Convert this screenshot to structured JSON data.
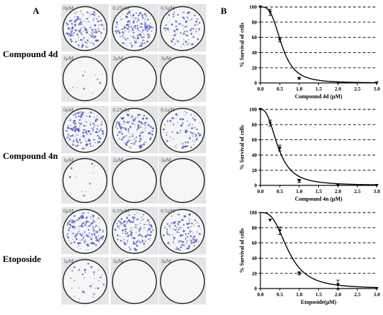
{
  "panels": {
    "a": "A",
    "b": "B"
  },
  "compounds": [
    {
      "name": "Compound 4d",
      "concentrations": [
        "0μM",
        "0.25μM",
        "0.5μM",
        "1μM",
        "2μM",
        "3μM"
      ],
      "colony_density": [
        1.0,
        1.0,
        0.55,
        0.06,
        0.0,
        0.0
      ]
    },
    {
      "name": "Compound 4n",
      "concentrations": [
        "0μM",
        "0.25μM",
        "0.5μM",
        "1μM",
        "2μM",
        "3μM"
      ],
      "colony_density": [
        1.0,
        0.85,
        0.5,
        0.06,
        0.0,
        0.0
      ]
    },
    {
      "name": "Etoposide",
      "concentrations": [
        "0μM",
        "0.25μM",
        "0.5μM",
        "1μM",
        "2μM",
        "3μM"
      ],
      "colony_density": [
        1.0,
        0.9,
        0.75,
        0.2,
        0.0,
        0.0
      ]
    }
  ],
  "colors": {
    "colony": "#4a55c0",
    "dish_border": "#222222",
    "curve": "#000000",
    "gridline": "#000000"
  },
  "chart_data": [
    {
      "type": "line",
      "xlabel": "Compound 4d (μM)",
      "ylabel": "% Survival of cells",
      "xlim": [
        0,
        3.0
      ],
      "ylim": [
        0,
        100
      ],
      "xticks": [
        "0.0",
        "0.5",
        "1.0",
        "1.5",
        "2.0",
        "2.5",
        "3.0"
      ],
      "yticks": [
        "0",
        "20",
        "40",
        "60",
        "80",
        "100"
      ],
      "grid": "horizontal dashed",
      "points": [
        {
          "x": 0,
          "y": 100
        },
        {
          "x": 0.25,
          "y": 93
        },
        {
          "x": 0.5,
          "y": 57
        },
        {
          "x": 1.0,
          "y": 6
        },
        {
          "x": 2.0,
          "y": 0
        },
        {
          "x": 3.0,
          "y": 0
        }
      ],
      "errors": [
        0,
        4,
        3,
        1,
        0,
        0
      ],
      "curve": {
        "ic50": 0.55,
        "hill": 3.3
      }
    },
    {
      "type": "line",
      "xlabel": "Compound 4n (μM)",
      "ylabel": "% Survival of cells",
      "xlim": [
        0,
        3.0
      ],
      "ylim": [
        0,
        100
      ],
      "xticks": [
        "0.0",
        "0.5",
        "1.0",
        "1.5",
        "2.0",
        "2.5",
        "3.0"
      ],
      "yticks": [
        "0",
        "20",
        "40",
        "60",
        "80",
        "100"
      ],
      "grid": "horizontal dashed",
      "points": [
        {
          "x": 0,
          "y": 100
        },
        {
          "x": 0.25,
          "y": 82
        },
        {
          "x": 0.5,
          "y": 49
        },
        {
          "x": 1.0,
          "y": 6
        },
        {
          "x": 2.0,
          "y": 0
        },
        {
          "x": 3.0,
          "y": 0
        }
      ],
      "errors": [
        0,
        4,
        4,
        2,
        0,
        0
      ],
      "curve": {
        "ic50": 0.46,
        "hill": 2.6
      }
    },
    {
      "type": "line",
      "xlabel": "Etoposide(μM)",
      "ylabel": "% Survival of cells",
      "xlim": [
        0,
        3.0
      ],
      "ylim": [
        0,
        100
      ],
      "xticks": [
        "0.0",
        "0.5",
        "1.0",
        "1.5",
        "2.0",
        "2.5",
        "3.0"
      ],
      "yticks": [
        "0",
        "20",
        "40",
        "60",
        "80",
        "100"
      ],
      "grid": "horizontal dashed",
      "points": [
        {
          "x": 0.25,
          "y": 90
        },
        {
          "x": 0.5,
          "y": 76
        },
        {
          "x": 1.0,
          "y": 20
        },
        {
          "x": 2.0,
          "y": 5
        },
        {
          "x": 3.0,
          "y": 0
        }
      ],
      "errors": [
        0,
        5,
        2,
        6,
        0
      ],
      "curve": {
        "ic50": 0.72,
        "hill": 3.0
      }
    }
  ]
}
